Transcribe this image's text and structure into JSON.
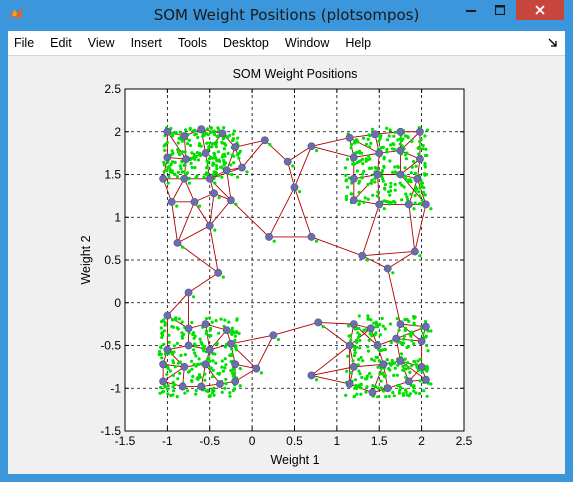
{
  "window": {
    "title": "SOM Weight Positions (plotsompos)",
    "icon": "matlab-icon",
    "controls": [
      "minimize-icon",
      "maximize-icon",
      "close-icon"
    ]
  },
  "menu": {
    "items": [
      "File",
      "Edit",
      "View",
      "Insert",
      "Tools",
      "Desktop",
      "Window",
      "Help"
    ],
    "dock_icon": "dock-arrow-icon"
  },
  "chart_data": {
    "type": "scatter",
    "title": "SOM Weight Positions",
    "xlabel": "Weight 1",
    "ylabel": "Weight 2",
    "xlim": [
      -1.5,
      2.5
    ],
    "ylim": [
      -1.5,
      2.5
    ],
    "xticks": [
      "-1.5",
      "-1",
      "-0.5",
      "0",
      "0.5",
      "1",
      "1.5",
      "2",
      "2.5"
    ],
    "yticks": [
      "-1.5",
      "-1",
      "-0.5",
      "0",
      "0.5",
      "1",
      "1.5",
      "2",
      "2.5"
    ],
    "grid": true,
    "colors": {
      "inputs": "#00e000",
      "neurons": "#6b6fa8",
      "links": "#b00000"
    },
    "neurons": [
      [
        -1.0,
        2.0
      ],
      [
        -0.8,
        1.95
      ],
      [
        -0.6,
        2.03
      ],
      [
        -0.35,
        1.98
      ],
      [
        0.15,
        1.9
      ],
      [
        0.7,
        1.83
      ],
      [
        1.15,
        1.93
      ],
      [
        1.45,
        1.97
      ],
      [
        1.75,
        2.0
      ],
      [
        1.98,
        2.0
      ],
      [
        -1.0,
        1.7
      ],
      [
        -0.78,
        1.68
      ],
      [
        -0.55,
        1.75
      ],
      [
        -0.2,
        1.82
      ],
      [
        0.42,
        1.65
      ],
      [
        1.2,
        1.7
      ],
      [
        1.5,
        1.75
      ],
      [
        1.75,
        1.78
      ],
      [
        1.98,
        1.68
      ],
      [
        -1.05,
        1.45
      ],
      [
        -0.8,
        1.45
      ],
      [
        -0.5,
        1.45
      ],
      [
        -0.3,
        1.55
      ],
      [
        -0.12,
        1.58
      ],
      [
        1.2,
        1.45
      ],
      [
        1.48,
        1.5
      ],
      [
        1.75,
        1.5
      ],
      [
        1.95,
        1.45
      ],
      [
        -0.95,
        1.18
      ],
      [
        -0.68,
        1.18
      ],
      [
        -0.45,
        1.28
      ],
      [
        -0.25,
        1.2
      ],
      [
        0.5,
        1.35
      ],
      [
        1.2,
        1.2
      ],
      [
        1.5,
        1.15
      ],
      [
        1.85,
        1.15
      ],
      [
        2.05,
        1.15
      ],
      [
        -0.5,
        0.9
      ],
      [
        0.2,
        0.77
      ],
      [
        0.7,
        0.77
      ],
      [
        -0.88,
        0.7
      ],
      [
        1.3,
        0.55
      ],
      [
        1.92,
        0.6
      ],
      [
        1.6,
        0.4
      ],
      [
        -0.4,
        0.35
      ],
      [
        -0.75,
        0.12
      ],
      [
        -1.0,
        -0.15
      ],
      [
        -0.75,
        -0.3
      ],
      [
        -0.55,
        -0.25
      ],
      [
        -0.3,
        -0.32
      ],
      [
        0.78,
        -0.23
      ],
      [
        1.2,
        -0.25
      ],
      [
        1.4,
        -0.3
      ],
      [
        1.75,
        -0.25
      ],
      [
        2.05,
        -0.28
      ],
      [
        -1.0,
        -0.55
      ],
      [
        -0.75,
        -0.5
      ],
      [
        -0.5,
        -0.55
      ],
      [
        -0.25,
        -0.48
      ],
      [
        0.25,
        -0.38
      ],
      [
        1.15,
        -0.5
      ],
      [
        1.48,
        -0.5
      ],
      [
        1.7,
        -0.42
      ],
      [
        2.0,
        -0.45
      ],
      [
        -1.05,
        -0.72
      ],
      [
        -0.8,
        -0.75
      ],
      [
        -0.55,
        -0.72
      ],
      [
        -0.2,
        -0.72
      ],
      [
        0.05,
        -0.77
      ],
      [
        1.2,
        -0.75
      ],
      [
        1.55,
        -0.72
      ],
      [
        1.75,
        -0.68
      ],
      [
        2.0,
        -0.75
      ],
      [
        -1.05,
        -0.92
      ],
      [
        -0.82,
        -0.98
      ],
      [
        -0.6,
        -0.98
      ],
      [
        -0.38,
        -0.95
      ],
      [
        -0.2,
        -0.92
      ],
      [
        0.7,
        -0.85
      ],
      [
        1.15,
        -0.95
      ],
      [
        1.42,
        -1.05
      ],
      [
        1.6,
        -1.0
      ],
      [
        1.85,
        -0.92
      ],
      [
        2.05,
        -0.9
      ]
    ]
  }
}
